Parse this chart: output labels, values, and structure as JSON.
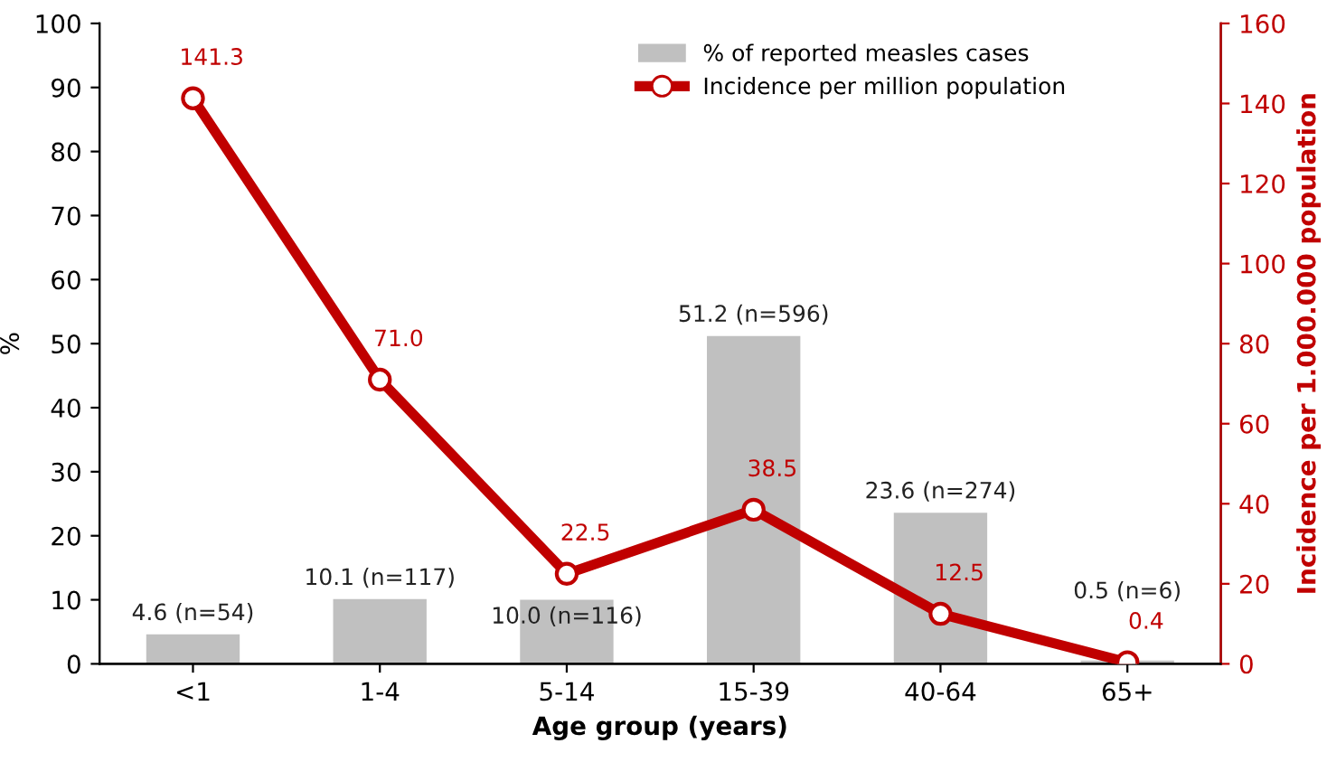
{
  "chart_data": {
    "type": "bar",
    "xlabel": "Age group (years)",
    "ylabel": "%",
    "y2label": "Incidence per 1.000.000 population",
    "categories": [
      "<1",
      "1-4",
      "5-14",
      "15-39",
      "40-64",
      "65+"
    ],
    "series": [
      {
        "name": "% of reported measles cases",
        "color": "#c0c0c0",
        "values": [
          4.6,
          10.1,
          10.0,
          51.2,
          23.6,
          0.5
        ],
        "value_labels": [
          "4.6 (n=54)",
          "10.1 (n=117)",
          "10.0 (n=116)",
          "51.2 (n=596)",
          "23.6 (n=274)",
          "0.5 (n=6)"
        ]
      },
      {
        "name": "Incidence per million population",
        "type": "line",
        "axis": "y2",
        "color": "#c00000",
        "marker": "circle",
        "values": [
          141.3,
          71.0,
          22.5,
          38.5,
          12.5,
          0.4
        ],
        "value_labels": [
          "141.3",
          "71.0",
          "22.5",
          "38.5",
          "12.5",
          "0.4"
        ]
      }
    ],
    "ylim": [
      0,
      100
    ],
    "yticks": [
      0,
      10,
      20,
      30,
      40,
      50,
      60,
      70,
      80,
      90,
      100
    ],
    "y2lim": [
      0,
      160
    ],
    "y2ticks": [
      0,
      20,
      40,
      60,
      80,
      100,
      120,
      140,
      160
    ],
    "grid": false,
    "legend": "top right"
  }
}
